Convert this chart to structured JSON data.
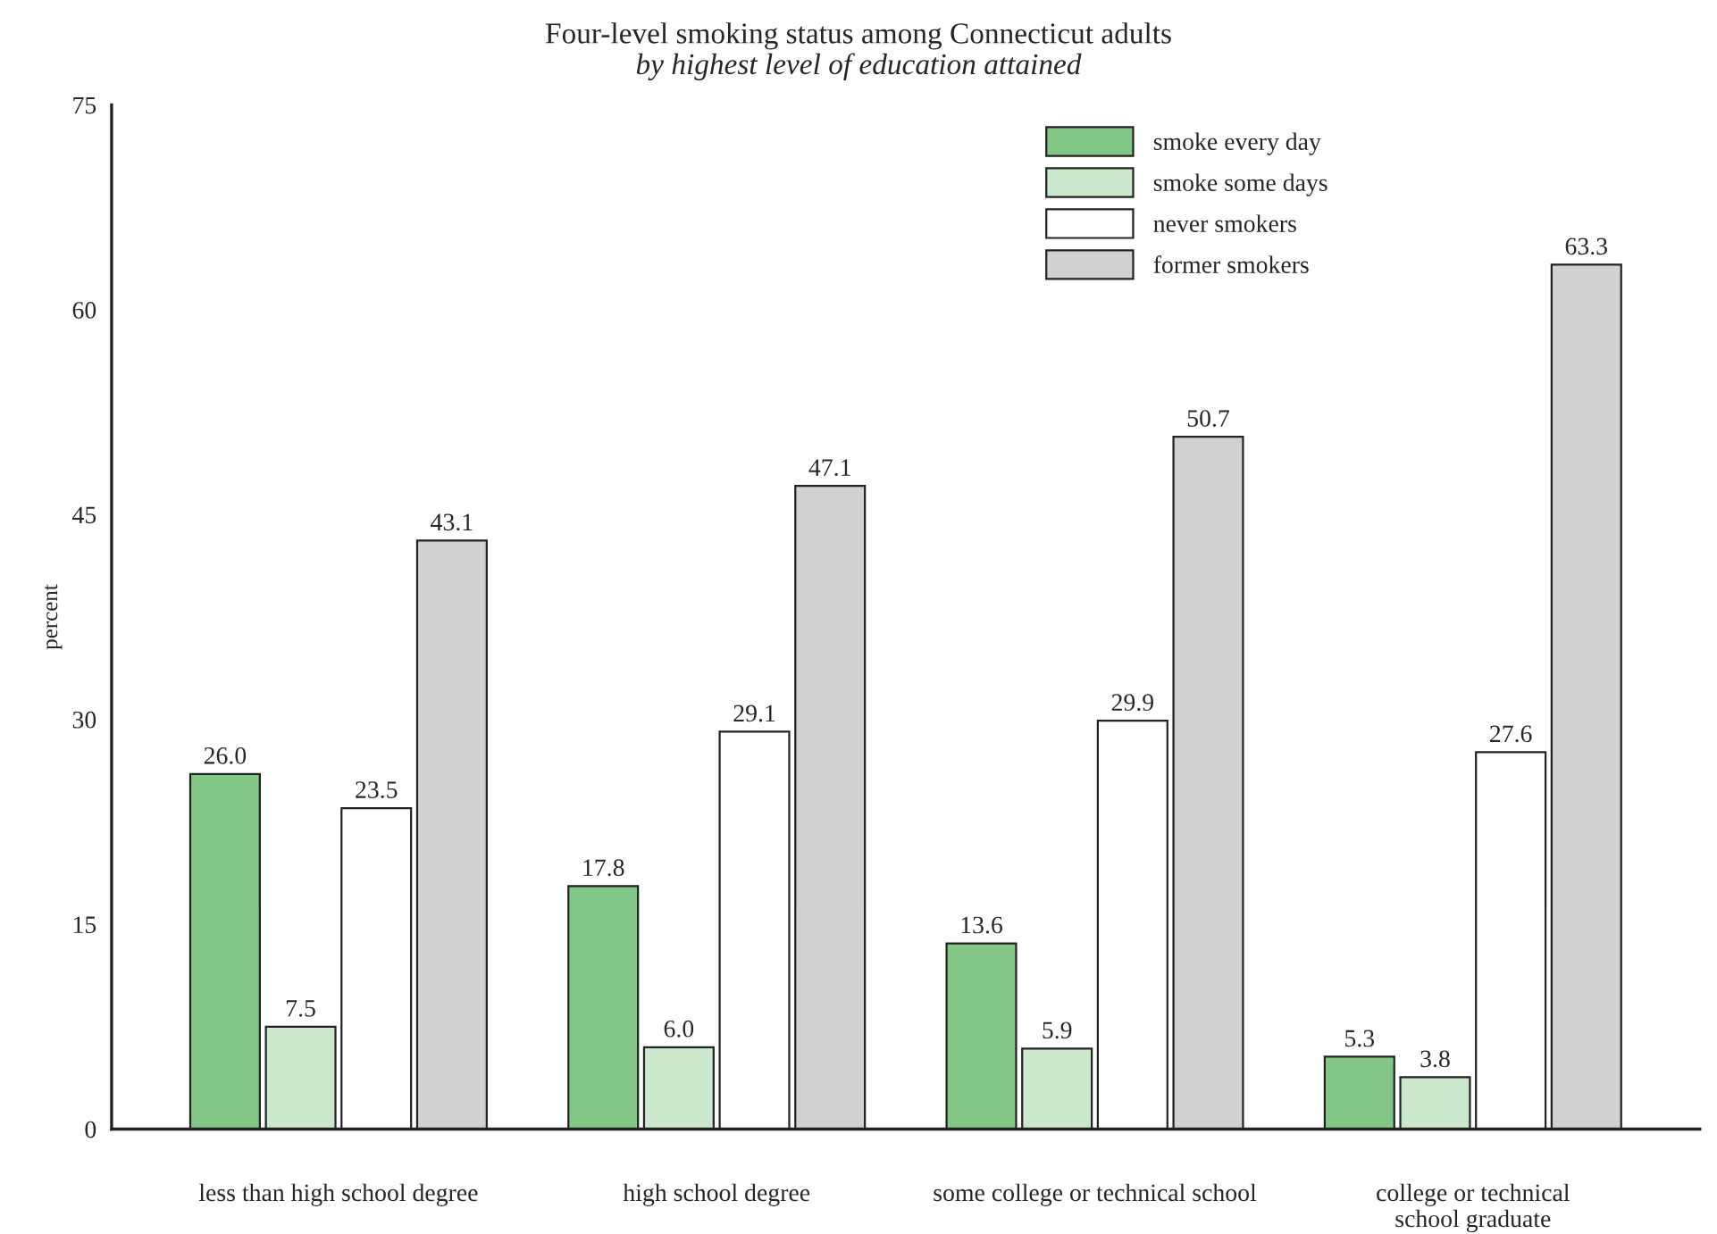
{
  "chart_data": {
    "type": "bar",
    "title": "Four-level smoking status among Connecticut adults",
    "subtitle": "by highest level of education attained",
    "ylabel": "percent",
    "categories": [
      "less than high school degree",
      "high school degree",
      "some college or technical school",
      "college or technical\nschool graduate"
    ],
    "series": [
      {
        "name": "smoke every day",
        "color": "#82c785",
        "values": [
          26.0,
          17.8,
          13.6,
          5.3
        ],
        "value_labels": [
          "26.0",
          "17.8",
          "13.6",
          "5.3"
        ]
      },
      {
        "name": "smoke some days",
        "color": "#cce8cc",
        "values": [
          7.5,
          6.0,
          5.9,
          3.8
        ],
        "value_labels": [
          "7.5",
          "6.0",
          "5.9",
          "3.8"
        ]
      },
      {
        "name": "never smokers",
        "color": "#ffffff",
        "values": [
          23.5,
          29.1,
          29.9,
          27.6
        ],
        "value_labels": [
          "23.5",
          "29.1",
          "29.9",
          "27.6"
        ]
      },
      {
        "name": "former smokers",
        "color": "#d0d1d3",
        "values": [
          43.1,
          47.1,
          50.7,
          63.3
        ],
        "value_labels": [
          "43.1",
          "47.1",
          "50.7",
          "63.3"
        ]
      }
    ],
    "ylim": [
      0,
      75
    ],
    "yticks": [
      0,
      15,
      30,
      45,
      60,
      75
    ],
    "legend": "top right",
    "grid": false
  }
}
